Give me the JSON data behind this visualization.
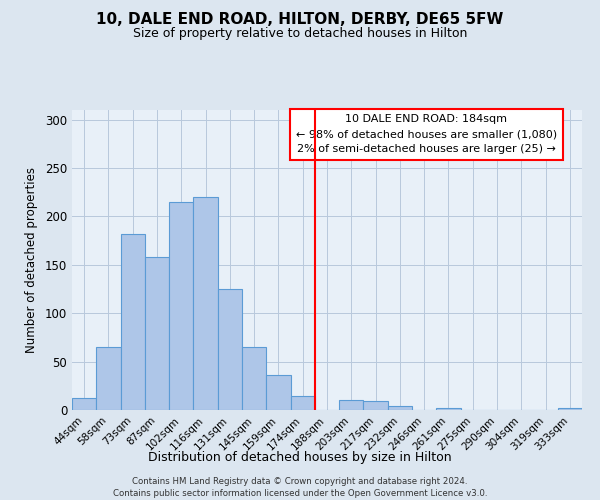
{
  "title": "10, DALE END ROAD, HILTON, DERBY, DE65 5FW",
  "subtitle": "Size of property relative to detached houses in Hilton",
  "xlabel": "Distribution of detached houses by size in Hilton",
  "ylabel": "Number of detached properties",
  "bar_color": "#aec6e8",
  "bar_edge_color": "#5b9bd5",
  "background_color": "#dce6f0",
  "plot_bg_color": "#e8f0f8",
  "grid_color": "#b8c8dc",
  "bin_labels": [
    "44sqm",
    "58sqm",
    "73sqm",
    "87sqm",
    "102sqm",
    "116sqm",
    "131sqm",
    "145sqm",
    "159sqm",
    "174sqm",
    "188sqm",
    "203sqm",
    "217sqm",
    "232sqm",
    "246sqm",
    "261sqm",
    "275sqm",
    "290sqm",
    "304sqm",
    "319sqm",
    "333sqm"
  ],
  "bar_heights": [
    12,
    65,
    182,
    158,
    215,
    220,
    125,
    65,
    36,
    14,
    0,
    10,
    9,
    4,
    0,
    2,
    0,
    0,
    0,
    0,
    2
  ],
  "vline_pos": 9.5,
  "ylim": [
    0,
    310
  ],
  "yticks": [
    0,
    50,
    100,
    150,
    200,
    250,
    300
  ],
  "annotation_title": "10 DALE END ROAD: 184sqm",
  "annotation_line1": "← 98% of detached houses are smaller (1,080)",
  "annotation_line2": "2% of semi-detached houses are larger (25) →",
  "footer1": "Contains HM Land Registry data © Crown copyright and database right 2024.",
  "footer2": "Contains public sector information licensed under the Open Government Licence v3.0."
}
